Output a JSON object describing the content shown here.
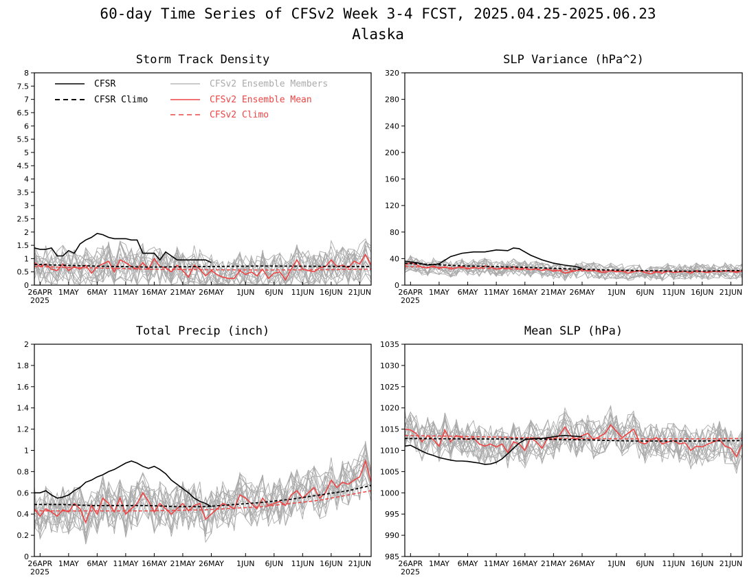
{
  "figure": {
    "title": "60-day Time Series of CFSv2 Week 3-4 FCST, 2025.04.25-2025.06.23",
    "subtitle": "Alaska"
  },
  "colors": {
    "cfsr": "#000000",
    "members": "#aaaaaa",
    "ens_mean": "#ee4444",
    "cfsv2_climo": "#ee4444"
  },
  "legend": {
    "cfsr": "CFSR",
    "cfsr_climo": "CFSR Climo",
    "members": "CFSv2 Ensemble Members",
    "ens_mean": "CFSv2 Ensemble Mean",
    "cfsv2_climo": "CFSv2 Climo"
  },
  "x_axis": {
    "tick_labels": [
      "26APR",
      "1MAY",
      "6MAY",
      "11MAY",
      "16MAY",
      "21MAY",
      "26MAY",
      "1JUN",
      "6JUN",
      "11JUN",
      "16JUN",
      "21JUN"
    ],
    "tick_days": [
      1,
      6,
      11,
      16,
      21,
      26,
      31,
      37,
      42,
      47,
      52,
      57
    ],
    "year_label": "2025"
  },
  "chart_data": [
    {
      "type": "line",
      "title": "Storm Track Density",
      "ylim": [
        0,
        8
      ],
      "yticks": [
        "0",
        "0.5",
        "1",
        "1.5",
        "2",
        "2.5",
        "3",
        "3.5",
        "4",
        "4.5",
        "5",
        "5.5",
        "6",
        "6.5",
        "7",
        "7.5",
        "8"
      ],
      "legend": "top-left",
      "grid": false,
      "series": [
        {
          "name": "CFSR",
          "style": "solid-black",
          "x": [
            0,
            1,
            2,
            3,
            4,
            5,
            6,
            7,
            8,
            9,
            10,
            11,
            12,
            13,
            14,
            15,
            16,
            17,
            18,
            19,
            20,
            21,
            22,
            23,
            24,
            25,
            26,
            27,
            28,
            29,
            30,
            31
          ],
          "values": [
            1.4,
            1.35,
            1.35,
            1.4,
            1.1,
            1.1,
            1.3,
            1.2,
            1.55,
            1.7,
            1.8,
            1.95,
            1.9,
            1.8,
            1.75,
            1.75,
            1.75,
            1.7,
            1.7,
            1.2,
            1.2,
            1.2,
            0.95,
            1.25,
            1.1,
            0.95,
            0.95,
            0.95,
            0.95,
            0.95,
            0.95,
            0.85
          ]
        },
        {
          "name": "CFSR Climo",
          "style": "dashed-black",
          "x": [
            0,
            10,
            20,
            30,
            40,
            50,
            59
          ],
          "values": [
            0.78,
            0.72,
            0.68,
            0.7,
            0.72,
            0.71,
            0.7
          ]
        },
        {
          "name": "CFSv2 Ensemble Mean",
          "style": "solid-red",
          "x": [
            0,
            1,
            2,
            3,
            4,
            5,
            6,
            7,
            8,
            9,
            10,
            11,
            12,
            13,
            14,
            15,
            16,
            17,
            18,
            19,
            20,
            21,
            22,
            23,
            24,
            25,
            26,
            27,
            28,
            29,
            30,
            31,
            32,
            33,
            34,
            35,
            36,
            37,
            38,
            39,
            40,
            41,
            42,
            43,
            44,
            45,
            46,
            47,
            48,
            49,
            50,
            51,
            52,
            53,
            54,
            55,
            56,
            57,
            58,
            59
          ],
          "values": [
            0.85,
            0.7,
            0.8,
            0.6,
            0.55,
            0.8,
            0.55,
            0.7,
            0.6,
            0.75,
            0.45,
            0.7,
            0.8,
            0.9,
            0.5,
            0.95,
            0.85,
            0.7,
            0.6,
            0.85,
            0.6,
            1.0,
            0.7,
            0.65,
            0.5,
            0.75,
            0.55,
            0.3,
            0.75,
            0.6,
            0.35,
            0.55,
            0.4,
            0.3,
            0.25,
            0.25,
            0.55,
            0.4,
            0.5,
            0.35,
            0.6,
            0.25,
            0.45,
            0.5,
            0.2,
            0.6,
            0.95,
            0.6,
            0.55,
            0.5,
            0.65,
            0.7,
            0.95,
            0.7,
            0.75,
            0.65,
            0.9,
            0.8,
            1.15,
            0.75
          ]
        },
        {
          "name": "CFSv2 Climo",
          "style": "dashed-red",
          "x": [
            0,
            10,
            20,
            30,
            40,
            50,
            59
          ],
          "values": [
            0.7,
            0.65,
            0.6,
            0.58,
            0.57,
            0.58,
            0.6
          ]
        }
      ],
      "members": {
        "name": "CFSv2 Ensemble Members",
        "count": 16,
        "spread": 0.75,
        "floor": 0
      }
    },
    {
      "type": "line",
      "title": "SLP Variance (hPa^2)",
      "ylim": [
        0,
        320
      ],
      "yticks": [
        "0",
        "40",
        "80",
        "120",
        "160",
        "200",
        "240",
        "280",
        "320"
      ],
      "grid": false,
      "series": [
        {
          "name": "CFSR",
          "style": "solid-black",
          "x": [
            0,
            2,
            4,
            6,
            8,
            10,
            12,
            14,
            16,
            18,
            19,
            20,
            22,
            24,
            26,
            28,
            30,
            31
          ],
          "values": [
            36,
            34,
            30,
            32,
            43,
            48,
            50,
            50,
            53,
            52,
            56,
            55,
            45,
            38,
            33,
            30,
            28,
            25
          ]
        },
        {
          "name": "CFSR Climo",
          "style": "dashed-black",
          "x": [
            0,
            10,
            20,
            30,
            40,
            50,
            59
          ],
          "values": [
            33,
            29,
            27,
            24,
            22,
            21,
            22
          ]
        },
        {
          "name": "CFSv2 Ensemble Mean",
          "style": "solid-red",
          "x": [
            0,
            1,
            2,
            3,
            4,
            5,
            6,
            7,
            8,
            9,
            10,
            11,
            12,
            13,
            14,
            15,
            16,
            17,
            18,
            19,
            20,
            21,
            22,
            23,
            24,
            25,
            26,
            27,
            28,
            29,
            30,
            31,
            32,
            33,
            34,
            35,
            36,
            37,
            38,
            39,
            40,
            41,
            42,
            43,
            44,
            45,
            46,
            47,
            48,
            49,
            50,
            51,
            52,
            53,
            54,
            55,
            56,
            57,
            58,
            59
          ],
          "values": [
            30,
            34,
            31,
            27,
            26,
            29,
            25,
            28,
            24,
            26,
            28,
            24,
            27,
            25,
            29,
            27,
            24,
            26,
            25,
            28,
            24,
            26,
            23,
            25,
            22,
            24,
            21,
            22,
            18,
            20,
            22,
            24,
            21,
            23,
            20,
            19,
            22,
            20,
            21,
            18,
            20,
            22,
            19,
            17,
            20,
            18,
            21,
            19,
            20,
            21,
            18,
            22,
            20,
            19,
            21,
            20,
            22,
            21,
            19,
            22
          ]
        },
        {
          "name": "CFSv2 Climo",
          "style": "dashed-red",
          "x": [
            0,
            10,
            20,
            30,
            40,
            50,
            59
          ],
          "values": [
            28,
            26,
            24,
            22,
            21,
            20,
            21
          ]
        }
      ],
      "members": {
        "name": "CFSv2 Ensemble Members",
        "count": 16,
        "spread": 12,
        "floor": 5
      }
    },
    {
      "type": "line",
      "title": "Total Precip (inch)",
      "ylim": [
        0,
        2
      ],
      "yticks": [
        "0",
        "0.2",
        "0.4",
        "0.6",
        "0.8",
        "1",
        "1.2",
        "1.4",
        "1.6",
        "1.8",
        "2"
      ],
      "grid": false,
      "series": [
        {
          "name": "CFSR",
          "style": "solid-black",
          "x": [
            0,
            1,
            2,
            3,
            4,
            5,
            6,
            7,
            8,
            9,
            10,
            11,
            12,
            13,
            14,
            15,
            16,
            17,
            18,
            19,
            20,
            21,
            22,
            23,
            24,
            25,
            26,
            27,
            28,
            29,
            30,
            31
          ],
          "values": [
            0.6,
            0.6,
            0.62,
            0.58,
            0.55,
            0.56,
            0.58,
            0.62,
            0.65,
            0.7,
            0.72,
            0.75,
            0.77,
            0.8,
            0.82,
            0.85,
            0.88,
            0.9,
            0.88,
            0.85,
            0.83,
            0.85,
            0.82,
            0.78,
            0.72,
            0.68,
            0.64,
            0.6,
            0.55,
            0.52,
            0.5,
            0.47
          ]
        },
        {
          "name": "CFSR Climo",
          "style": "dashed-black",
          "x": [
            0,
            5,
            10,
            15,
            20,
            25,
            30,
            35,
            40,
            45,
            50,
            55,
            59
          ],
          "values": [
            0.49,
            0.49,
            0.48,
            0.48,
            0.48,
            0.47,
            0.47,
            0.49,
            0.51,
            0.54,
            0.58,
            0.62,
            0.67
          ]
        },
        {
          "name": "CFSv2 Ensemble Mean",
          "style": "solid-red",
          "x": [
            0,
            1,
            2,
            3,
            4,
            5,
            6,
            7,
            8,
            9,
            10,
            11,
            12,
            13,
            14,
            15,
            16,
            17,
            18,
            19,
            20,
            21,
            22,
            23,
            24,
            25,
            26,
            27,
            28,
            29,
            30,
            31,
            32,
            33,
            34,
            35,
            36,
            37,
            38,
            39,
            40,
            41,
            42,
            43,
            44,
            45,
            46,
            47,
            48,
            49,
            50,
            51,
            52,
            53,
            54,
            55,
            56,
            57,
            58,
            59
          ],
          "values": [
            0.45,
            0.38,
            0.45,
            0.42,
            0.38,
            0.44,
            0.42,
            0.5,
            0.45,
            0.32,
            0.48,
            0.4,
            0.55,
            0.5,
            0.42,
            0.55,
            0.4,
            0.45,
            0.5,
            0.6,
            0.52,
            0.42,
            0.5,
            0.45,
            0.4,
            0.45,
            0.5,
            0.43,
            0.48,
            0.5,
            0.35,
            0.4,
            0.45,
            0.5,
            0.48,
            0.45,
            0.58,
            0.55,
            0.5,
            0.45,
            0.55,
            0.48,
            0.5,
            0.52,
            0.48,
            0.58,
            0.62,
            0.55,
            0.6,
            0.65,
            0.55,
            0.6,
            0.72,
            0.65,
            0.7,
            0.68,
            0.72,
            0.75,
            0.9,
            0.7
          ]
        },
        {
          "name": "CFSv2 Climo",
          "style": "dashed-red",
          "x": [
            0,
            10,
            20,
            30,
            40,
            50,
            59
          ],
          "values": [
            0.43,
            0.43,
            0.43,
            0.44,
            0.47,
            0.53,
            0.62
          ]
        }
      ],
      "members": {
        "name": "CFSv2 Ensemble Members",
        "count": 16,
        "spread": 0.22,
        "floor": 0.1
      }
    },
    {
      "type": "line",
      "title": "Mean SLP (hPa)",
      "ylim": [
        985,
        1035
      ],
      "yticks": [
        "985",
        "990",
        "995",
        "1000",
        "1005",
        "1010",
        "1015",
        "1020",
        "1025",
        "1030",
        "1035"
      ],
      "grid": false,
      "series": [
        {
          "name": "CFSR",
          "style": "solid-black",
          "x": [
            0,
            1,
            2,
            3,
            4,
            5,
            6,
            7,
            8,
            9,
            10,
            11,
            12,
            13,
            14,
            15,
            16,
            17,
            18,
            19,
            20,
            21,
            22,
            23,
            24,
            25,
            26,
            27,
            28,
            29,
            30,
            31
          ],
          "values": [
            1011,
            1011.2,
            1010.5,
            1009.8,
            1009.2,
            1008.8,
            1008.3,
            1008,
            1007.7,
            1007.5,
            1007.5,
            1007.4,
            1007.2,
            1007,
            1006.7,
            1006.8,
            1007.2,
            1008,
            1009.2,
            1010.5,
            1011.7,
            1012.5,
            1012.7,
            1012.8,
            1012.8,
            1013,
            1013.2,
            1013.4,
            1013.5,
            1013.4,
            1013.3,
            1013.2
          ]
        },
        {
          "name": "CFSR Climo",
          "style": "dashed-black",
          "x": [
            0,
            10,
            20,
            30,
            40,
            50,
            59
          ],
          "values": [
            1012.8,
            1012.7,
            1012.7,
            1012.5,
            1012.2,
            1012.2,
            1012.3
          ]
        },
        {
          "name": "CFSv2 Ensemble Mean",
          "style": "solid-red",
          "x": [
            0,
            1,
            2,
            3,
            4,
            5,
            6,
            7,
            8,
            9,
            10,
            11,
            12,
            13,
            14,
            15,
            16,
            17,
            18,
            19,
            20,
            21,
            22,
            23,
            24,
            25,
            26,
            27,
            28,
            29,
            30,
            31,
            32,
            33,
            34,
            35,
            36,
            37,
            38,
            39,
            40,
            41,
            42,
            43,
            44,
            45,
            46,
            47,
            48,
            49,
            50,
            51,
            52,
            53,
            54,
            55,
            56,
            57,
            58,
            59
          ],
          "values": [
            1015,
            1014.8,
            1014,
            1012,
            1013.5,
            1012.5,
            1011,
            1014.8,
            1012,
            1013.5,
            1013,
            1012.5,
            1013,
            1011.5,
            1011,
            1011.5,
            1010.8,
            1011.5,
            1009.5,
            1012,
            1011.5,
            1010,
            1013,
            1012,
            1010.5,
            1013,
            1012.5,
            1013.5,
            1015.5,
            1013.5,
            1012.5,
            1013.5,
            1014,
            1012.5,
            1013.2,
            1014,
            1016,
            1014.5,
            1013,
            1014,
            1015,
            1012,
            1011.5,
            1012.5,
            1013,
            1011.5,
            1012,
            1012.3,
            1011.5,
            1011.8,
            1010,
            1011,
            1010.8,
            1011.5,
            1012,
            1012.5,
            1011,
            1010.5,
            1008.5,
            1011.5
          ]
        },
        {
          "name": "CFSv2 Climo",
          "style": "dashed-red",
          "x": [
            0,
            10,
            20,
            30,
            40,
            50,
            59
          ],
          "values": [
            1013.5,
            1013.3,
            1013,
            1012.8,
            1012.7,
            1012.7,
            1012.8
          ]
        }
      ],
      "members": {
        "name": "CFSv2 Ensemble Members",
        "count": 16,
        "spread": 4.5,
        "floor": 985
      }
    }
  ]
}
